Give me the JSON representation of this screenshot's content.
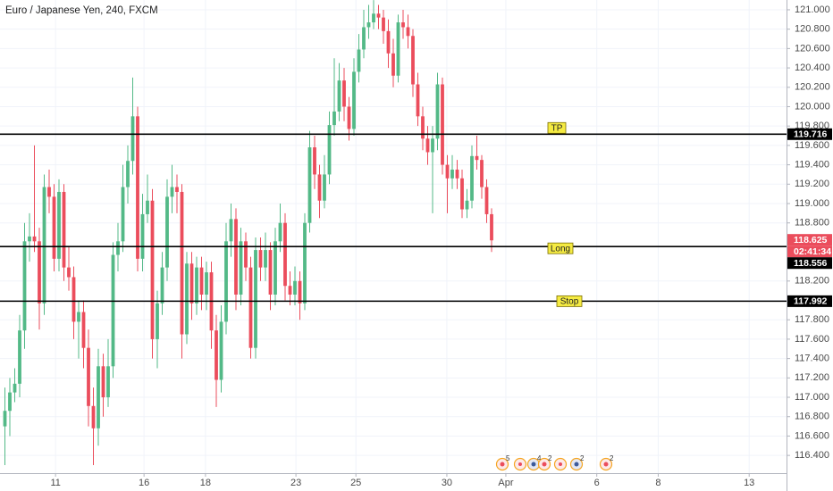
{
  "chart_data": {
    "type": "candlestick",
    "title": "Euro / Japanese Yen, 240, FXCM",
    "up_color": "#53b987",
    "down_color": "#eb4d5c",
    "grid": true,
    "xlim": [
      -1,
      159
    ],
    "ylim": [
      116.217,
      121.101
    ],
    "xticks": [
      {
        "value": 10.3,
        "label": "11"
      },
      {
        "value": 28.3,
        "label": "16"
      },
      {
        "value": 40.8,
        "label": "18"
      },
      {
        "value": 59.2,
        "label": "23"
      },
      {
        "value": 71.4,
        "label": "25"
      },
      {
        "value": 89.9,
        "label": "30"
      },
      {
        "value": 101.9,
        "label": "Apr"
      },
      {
        "value": 120.4,
        "label": "6"
      },
      {
        "value": 132.9,
        "label": "8"
      },
      {
        "value": 151.4,
        "label": "13"
      }
    ],
    "yticks": [
      {
        "value": 116.4,
        "label": "116.400"
      },
      {
        "value": 116.6,
        "label": "116.600"
      },
      {
        "value": 116.8,
        "label": "116.800"
      },
      {
        "value": 117.0,
        "label": "117.000"
      },
      {
        "value": 117.2,
        "label": "117.200"
      },
      {
        "value": 117.4,
        "label": "117.400"
      },
      {
        "value": 117.6,
        "label": "117.600"
      },
      {
        "value": 117.8,
        "label": "117.800"
      },
      {
        "value": 118.0,
        "label": "118.000"
      },
      {
        "value": 118.2,
        "label": "118.200"
      },
      {
        "value": 118.8,
        "label": "118.800"
      },
      {
        "value": 119.0,
        "label": "119.000"
      },
      {
        "value": 119.2,
        "label": "119.200"
      },
      {
        "value": 119.4,
        "label": "119.400"
      },
      {
        "value": 119.6,
        "label": "119.600"
      },
      {
        "value": 119.8,
        "label": "119.800"
      },
      {
        "value": 120.0,
        "label": "120.000"
      },
      {
        "value": 120.2,
        "label": "120.200"
      },
      {
        "value": 120.4,
        "label": "120.400"
      },
      {
        "value": 120.6,
        "label": "120.600"
      },
      {
        "value": 120.8,
        "label": "120.800"
      },
      {
        "value": 121.0,
        "label": "121.000"
      }
    ],
    "levels": [
      {
        "label": "TP",
        "value": 119.716
      },
      {
        "label": "Long",
        "value": 118.556
      },
      {
        "label": "Stop",
        "value": 117.992
      }
    ],
    "last_price": 118.625,
    "countdown": "02:41:34",
    "event_badges": [
      "5",
      "4",
      "2",
      "2",
      "2"
    ],
    "ohlc": [
      [
        116.7,
        117.1,
        116.3,
        116.86
      ],
      [
        116.86,
        117.2,
        116.6,
        117.05
      ],
      [
        117.05,
        117.3,
        116.95,
        117.14
      ],
      [
        117.14,
        117.85,
        117.0,
        117.69
      ],
      [
        117.69,
        118.8,
        117.5,
        118.61
      ],
      [
        118.61,
        118.9,
        118.4,
        118.66
      ],
      [
        118.66,
        119.6,
        118.5,
        118.61
      ],
      [
        118.61,
        118.75,
        117.7,
        117.97
      ],
      [
        117.97,
        119.3,
        117.85,
        119.17
      ],
      [
        119.17,
        119.35,
        118.9,
        119.07
      ],
      [
        119.07,
        119.2,
        118.3,
        118.43
      ],
      [
        118.43,
        119.25,
        118.3,
        119.12
      ],
      [
        119.12,
        119.2,
        118.2,
        118.34
      ],
      [
        118.34,
        118.55,
        118.1,
        118.24
      ],
      [
        118.24,
        118.35,
        117.6,
        117.78
      ],
      [
        117.78,
        118.0,
        117.4,
        117.88
      ],
      [
        117.88,
        118.0,
        117.3,
        117.51
      ],
      [
        117.51,
        117.7,
        116.7,
        116.91
      ],
      [
        116.91,
        117.1,
        116.3,
        116.68
      ],
      [
        116.68,
        117.5,
        116.5,
        117.32
      ],
      [
        117.32,
        117.45,
        116.8,
        117.0
      ],
      [
        117.0,
        117.6,
        116.9,
        117.32
      ],
      [
        117.32,
        118.6,
        117.2,
        118.47
      ],
      [
        118.47,
        118.8,
        118.3,
        118.61
      ],
      [
        118.61,
        119.4,
        118.5,
        119.17
      ],
      [
        119.17,
        119.6,
        119.0,
        119.44
      ],
      [
        119.44,
        120.3,
        119.3,
        119.9
      ],
      [
        119.9,
        120.0,
        118.3,
        118.43
      ],
      [
        118.43,
        119.1,
        118.3,
        118.89
      ],
      [
        118.89,
        119.3,
        118.8,
        119.03
      ],
      [
        119.03,
        119.15,
        117.4,
        117.6
      ],
      [
        117.6,
        118.1,
        117.3,
        117.97
      ],
      [
        117.97,
        118.5,
        117.85,
        118.34
      ],
      [
        118.34,
        119.25,
        118.2,
        119.07
      ],
      [
        119.07,
        119.4,
        118.9,
        119.17
      ],
      [
        119.17,
        119.3,
        118.9,
        119.12
      ],
      [
        119.12,
        119.2,
        117.4,
        117.65
      ],
      [
        117.65,
        118.5,
        117.55,
        118.38
      ],
      [
        118.38,
        118.5,
        117.8,
        117.97
      ],
      [
        117.97,
        118.45,
        117.85,
        118.34
      ],
      [
        118.34,
        118.45,
        117.9,
        118.06
      ],
      [
        118.06,
        118.4,
        117.9,
        118.29
      ],
      [
        118.29,
        118.4,
        117.5,
        117.69
      ],
      [
        117.69,
        117.85,
        116.9,
        117.18
      ],
      [
        117.18,
        117.95,
        117.05,
        117.78
      ],
      [
        117.78,
        118.8,
        117.65,
        118.61
      ],
      [
        118.61,
        119.0,
        118.45,
        118.84
      ],
      [
        118.84,
        118.95,
        117.9,
        118.06
      ],
      [
        118.06,
        118.75,
        117.95,
        118.61
      ],
      [
        118.61,
        118.7,
        118.2,
        118.34
      ],
      [
        118.34,
        118.45,
        117.4,
        117.51
      ],
      [
        117.51,
        118.65,
        117.4,
        118.52
      ],
      [
        118.52,
        118.65,
        118.2,
        118.34
      ],
      [
        118.34,
        118.7,
        118.2,
        118.52
      ],
      [
        118.52,
        118.6,
        117.9,
        118.06
      ],
      [
        118.06,
        118.75,
        117.95,
        118.61
      ],
      [
        118.61,
        119.0,
        118.5,
        118.8
      ],
      [
        118.8,
        118.9,
        118.0,
        118.15
      ],
      [
        118.15,
        118.3,
        117.95,
        118.06
      ],
      [
        118.06,
        118.35,
        117.95,
        118.2
      ],
      [
        118.2,
        118.3,
        117.8,
        117.97
      ],
      [
        117.97,
        118.9,
        117.9,
        118.8
      ],
      [
        118.8,
        119.75,
        118.7,
        119.58
      ],
      [
        119.58,
        119.7,
        119.15,
        119.3
      ],
      [
        119.3,
        119.4,
        118.85,
        119.03
      ],
      [
        119.03,
        119.5,
        118.95,
        119.3
      ],
      [
        119.3,
        119.95,
        119.2,
        119.81
      ],
      [
        119.81,
        120.5,
        119.7,
        119.95
      ],
      [
        119.95,
        120.45,
        119.85,
        120.27
      ],
      [
        120.27,
        120.4,
        119.85,
        120.0
      ],
      [
        120.0,
        120.1,
        119.65,
        119.77
      ],
      [
        119.77,
        120.5,
        119.7,
        120.36
      ],
      [
        120.36,
        120.75,
        120.25,
        120.59
      ],
      [
        120.59,
        121.0,
        120.5,
        120.82
      ],
      [
        120.82,
        121.05,
        120.7,
        120.87
      ],
      [
        120.87,
        121.1,
        120.8,
        120.96
      ],
      [
        120.96,
        121.05,
        120.8,
        120.92
      ],
      [
        120.92,
        121.0,
        120.65,
        120.78
      ],
      [
        120.78,
        120.9,
        120.4,
        120.55
      ],
      [
        120.55,
        120.7,
        120.2,
        120.32
      ],
      [
        120.32,
        120.95,
        120.25,
        120.87
      ],
      [
        120.87,
        121.0,
        120.7,
        120.82
      ],
      [
        120.82,
        120.95,
        120.6,
        120.73
      ],
      [
        120.73,
        120.8,
        120.1,
        120.23
      ],
      [
        120.23,
        120.35,
        119.8,
        119.9
      ],
      [
        119.9,
        120.0,
        119.55,
        119.67
      ],
      [
        119.67,
        119.8,
        119.4,
        119.53
      ],
      [
        119.53,
        119.8,
        118.9,
        119.67
      ],
      [
        119.67,
        120.35,
        119.55,
        120.23
      ],
      [
        120.23,
        120.3,
        119.3,
        119.4
      ],
      [
        119.4,
        119.5,
        118.9,
        119.26
      ],
      [
        119.26,
        119.5,
        119.15,
        119.35
      ],
      [
        119.35,
        119.45,
        119.15,
        119.26
      ],
      [
        119.26,
        119.35,
        118.85,
        118.94
      ],
      [
        118.94,
        119.15,
        118.85,
        119.03
      ],
      [
        119.03,
        119.6,
        118.95,
        119.49
      ],
      [
        119.49,
        119.7,
        119.35,
        119.45
      ],
      [
        119.45,
        119.5,
        119.05,
        119.17
      ],
      [
        119.17,
        119.25,
        118.8,
        118.89
      ],
      [
        118.89,
        118.95,
        118.5,
        118.62
      ]
    ]
  }
}
